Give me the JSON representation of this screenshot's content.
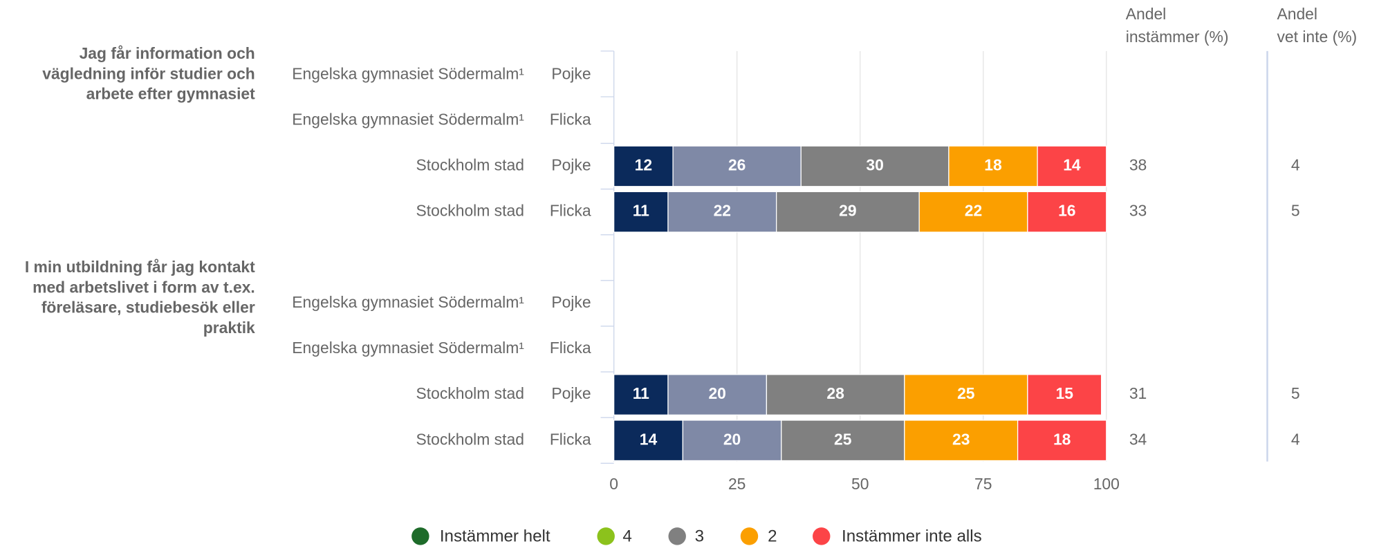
{
  "chart_data": {
    "type": "bar",
    "orientation": "horizontal",
    "stacked": true,
    "groups": [
      {
        "label": [
          "Jag får information och",
          "vägledning inför studier och",
          "arbete efter gymnasiet"
        ],
        "rows": [
          0,
          1,
          2,
          3
        ]
      },
      {
        "label": [
          "I min utbildning får jag kontakt",
          "med arbetslivet i form av t.ex.",
          "föreläsare, studiebesök eller",
          "praktik"
        ],
        "rows": [
          4,
          5,
          6,
          7
        ]
      }
    ],
    "schools": [
      "Engelska gymnasiet Södermalm¹",
      "Engelska gymnasiet Södermalm¹",
      "Stockholm stad",
      "Stockholm stad",
      "Engelska gymnasiet Södermalm¹",
      "Engelska gymnasiet Södermalm¹",
      "Stockholm stad",
      "Stockholm stad"
    ],
    "genders": [
      "Pojke",
      "Flicka",
      "Pojke",
      "Flicka",
      "Pojke",
      "Flicka",
      "Pojke",
      "Flicka"
    ],
    "series": [
      {
        "name": "Instämmer helt",
        "color": "#0b2a5b",
        "legend_color": "#1e6b2a",
        "values": [
          null,
          null,
          12,
          11,
          null,
          null,
          11,
          14
        ]
      },
      {
        "name": "4",
        "color": "#7f89a6",
        "legend_color": "#8cc21c",
        "values": [
          null,
          null,
          26,
          22,
          null,
          null,
          20,
          20
        ]
      },
      {
        "name": "3",
        "color": "#808080",
        "legend_color": "#808080",
        "values": [
          null,
          null,
          30,
          29,
          null,
          null,
          28,
          25
        ]
      },
      {
        "name": "2",
        "color": "#fb9f00",
        "legend_color": "#fb9f00",
        "values": [
          null,
          null,
          18,
          22,
          null,
          null,
          25,
          23
        ]
      },
      {
        "name": "Instämmer inte alls",
        "color": "#fc4447",
        "legend_color": "#fc4447",
        "values": [
          null,
          null,
          14,
          16,
          null,
          null,
          15,
          18
        ]
      }
    ],
    "columns": [
      {
        "header": [
          "Andel",
          "instämmer (%)"
        ],
        "values": [
          null,
          null,
          38,
          33,
          null,
          null,
          31,
          34
        ]
      },
      {
        "header": [
          "Andel",
          "vet inte (%)"
        ],
        "values": [
          null,
          null,
          4,
          5,
          null,
          null,
          5,
          4
        ]
      }
    ],
    "xlim": [
      0,
      100
    ],
    "xticks": [
      0,
      25,
      50,
      75,
      100
    ],
    "grid": true
  }
}
